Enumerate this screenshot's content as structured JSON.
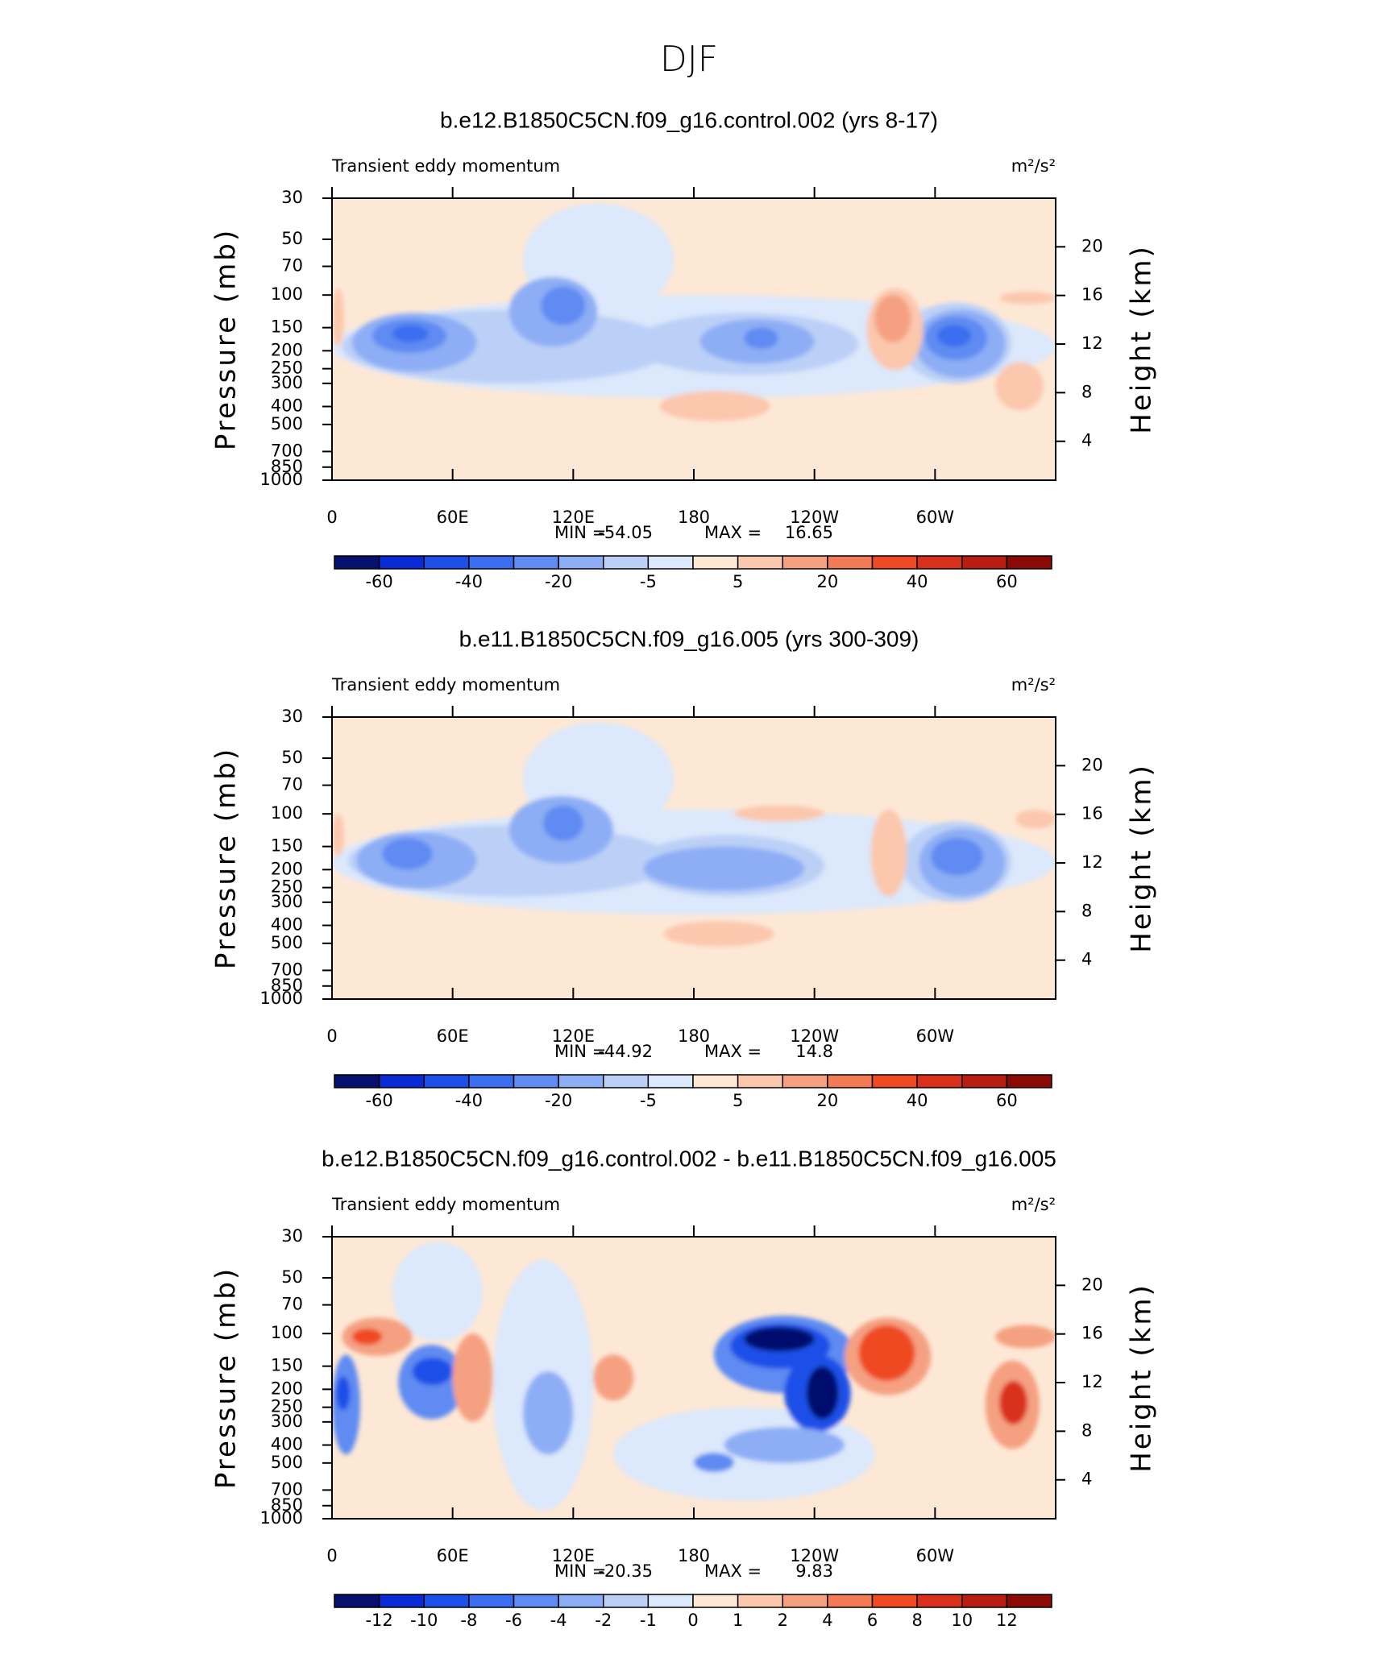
{
  "title": "DJF",
  "chart_data": [
    {
      "type": "contour",
      "title": "b.e12.B1850C5CN.f09_g16.control.002 (yrs 8-17)",
      "subtitle": "Transient eddy momentum",
      "units": "m²/s²",
      "ylabel": "Pressure (mb)",
      "y2label": "Height (km)",
      "xlim": [
        0,
        360
      ],
      "xticks": [
        0,
        {
          "value": 60,
          "label": "60E"
        },
        {
          "value": 120,
          "label": "120E"
        },
        180,
        {
          "value": 240,
          "label": "120W"
        },
        {
          "value": 300,
          "label": "60W"
        }
      ],
      "ylim": [
        30,
        1000
      ],
      "ylog": true,
      "y_reversed": true,
      "yticks": [
        30,
        50,
        70,
        100,
        150,
        200,
        250,
        300,
        400,
        500,
        700,
        850,
        1000
      ],
      "y2lim": [
        0.8,
        24
      ],
      "y2ticks": [
        4,
        8,
        12,
        16,
        20
      ],
      "min_label": "MIN =",
      "min": -54.05,
      "max_label": "MAX =",
      "max": 16.65,
      "levels": [
        -60,
        -50,
        -40,
        -30,
        -20,
        -10,
        -5,
        0,
        5,
        10,
        20,
        30,
        40,
        50,
        60
      ],
      "colorbar_ticks": [
        -60,
        -40,
        -20,
        -5,
        5,
        20,
        40,
        60
      ],
      "colors": [
        "#06106e",
        "#0a2ad6",
        "#1d4fe8",
        "#3b6ef0",
        "#5f8bf2",
        "#8dadf5",
        "#bcd0f7",
        "#dce8fb",
        "#fde8d6",
        "#fbc7ad",
        "#f5a081",
        "#f27a55",
        "#ef4a22",
        "#d8301a",
        "#b81d12",
        "#8a0a06"
      ],
      "background": 0,
      "regions": [
        {
          "lon": [
            95,
            170
          ],
          "p": [
            32,
            130
          ],
          "value": -1
        },
        {
          "lon": [
            0,
            360
          ],
          "p": [
            100,
            360
          ],
          "value": -1
        },
        {
          "lon": [
            5,
            170
          ],
          "p": [
            120,
            300
          ],
          "value": -5
        },
        {
          "lon": [
            150,
            262
          ],
          "p": [
            125,
            270
          ],
          "value": -5
        },
        {
          "lon": [
            283,
            338
          ],
          "p": [
            110,
            300
          ],
          "value": -5
        },
        {
          "lon": [
            10,
            72
          ],
          "p": [
            125,
            260
          ],
          "value": -10
        },
        {
          "lon": [
            88,
            132
          ],
          "p": [
            80,
            190
          ],
          "value": -10
        },
        {
          "lon": [
            183,
            240
          ],
          "p": [
            135,
            235
          ],
          "value": -10
        },
        {
          "lon": [
            290,
            335
          ],
          "p": [
            120,
            280
          ],
          "value": -10
        },
        {
          "lon": [
            20,
            57
          ],
          "p": [
            135,
            205
          ],
          "value": -20
        },
        {
          "lon": [
            104,
            126
          ],
          "p": [
            90,
            145
          ],
          "value": -20
        },
        {
          "lon": [
            205,
            222
          ],
          "p": [
            150,
            195
          ],
          "value": -20
        },
        {
          "lon": [
            295,
            326
          ],
          "p": [
            130,
            225
          ],
          "value": -20
        },
        {
          "lon": [
            30,
            48
          ],
          "p": [
            145,
            180
          ],
          "value": -30
        },
        {
          "lon": [
            301,
            318
          ],
          "p": [
            145,
            190
          ],
          "value": -30
        },
        {
          "lon": [
            266,
            294
          ],
          "p": [
            92,
            255
          ],
          "value": 5
        },
        {
          "lon": [
            270,
            288
          ],
          "p": [
            100,
            180
          ],
          "value": 10
        },
        {
          "lon": [
            0,
            6
          ],
          "p": [
            92,
            190
          ],
          "value": 5
        },
        {
          "lon": [
            163,
            218
          ],
          "p": [
            330,
            480
          ],
          "value": 5
        },
        {
          "lon": [
            330,
            354
          ],
          "p": [
            230,
            420
          ],
          "value": 5
        },
        {
          "lon": [
            332,
            360
          ],
          "p": [
            96,
            112
          ],
          "value": 5
        }
      ]
    },
    {
      "type": "contour",
      "title": "b.e11.B1850C5CN.f09_g16.005 (yrs 300-309)",
      "subtitle": "Transient eddy momentum",
      "units": "m²/s²",
      "ylabel": "Pressure (mb)",
      "y2label": "Height (km)",
      "xlim": [
        0,
        360
      ],
      "xticks": [
        0,
        {
          "value": 60,
          "label": "60E"
        },
        {
          "value": 120,
          "label": "120E"
        },
        180,
        {
          "value": 240,
          "label": "120W"
        },
        {
          "value": 300,
          "label": "60W"
        }
      ],
      "ylim": [
        30,
        1000
      ],
      "ylog": true,
      "y_reversed": true,
      "yticks": [
        30,
        50,
        70,
        100,
        150,
        200,
        250,
        300,
        400,
        500,
        700,
        850,
        1000
      ],
      "y2lim": [
        0.8,
        24
      ],
      "y2ticks": [
        4,
        8,
        12,
        16,
        20
      ],
      "min_label": "MIN =",
      "min": -44.92,
      "max_label": "MAX =",
      "max": 14.8,
      "levels": [
        -60,
        -50,
        -40,
        -30,
        -20,
        -10,
        -5,
        0,
        5,
        10,
        20,
        30,
        40,
        50,
        60
      ],
      "colorbar_ticks": [
        -60,
        -40,
        -20,
        -5,
        5,
        20,
        40,
        60
      ],
      "colors": [
        "#06106e",
        "#0a2ad6",
        "#1d4fe8",
        "#3b6ef0",
        "#5f8bf2",
        "#8dadf5",
        "#bcd0f7",
        "#dce8fb",
        "#fde8d6",
        "#fbc7ad",
        "#f5a081",
        "#f27a55",
        "#ef4a22",
        "#d8301a",
        "#b81d12",
        "#8a0a06"
      ],
      "background": 0,
      "regions": [
        {
          "lon": [
            95,
            170
          ],
          "p": [
            32,
            130
          ],
          "value": -1
        },
        {
          "lon": [
            0,
            360
          ],
          "p": [
            95,
            350
          ],
          "value": -1
        },
        {
          "lon": [
            8,
            170
          ],
          "p": [
            115,
            280
          ],
          "value": -5
        },
        {
          "lon": [
            150,
            245
          ],
          "p": [
            130,
            280
          ],
          "value": -5
        },
        {
          "lon": [
            283,
            338
          ],
          "p": [
            110,
            300
          ],
          "value": -5
        },
        {
          "lon": [
            12,
            72
          ],
          "p": [
            125,
            255
          ],
          "value": -10
        },
        {
          "lon": [
            88,
            140
          ],
          "p": [
            80,
            185
          ],
          "value": -10
        },
        {
          "lon": [
            155,
            235
          ],
          "p": [
            150,
            260
          ],
          "value": -10
        },
        {
          "lon": [
            292,
            335
          ],
          "p": [
            120,
            280
          ],
          "value": -10
        },
        {
          "lon": [
            25,
            50
          ],
          "p": [
            135,
            200
          ],
          "value": -20
        },
        {
          "lon": [
            105,
            125
          ],
          "p": [
            90,
            140
          ],
          "value": -20
        },
        {
          "lon": [
            298,
            324
          ],
          "p": [
            135,
            215
          ],
          "value": -20
        },
        {
          "lon": [
            268,
            286
          ],
          "p": [
            95,
            280
          ],
          "value": 5
        },
        {
          "lon": [
            200,
            245
          ],
          "p": [
            90,
            110
          ],
          "value": 5
        },
        {
          "lon": [
            0,
            6
          ],
          "p": [
            100,
            170
          ],
          "value": 5
        },
        {
          "lon": [
            165,
            220
          ],
          "p": [
            380,
            520
          ],
          "value": 5
        },
        {
          "lon": [
            340,
            360
          ],
          "p": [
            95,
            120
          ],
          "value": 5
        }
      ]
    },
    {
      "type": "contour",
      "title": "b.e12.B1850C5CN.f09_g16.control.002 - b.e11.B1850C5CN.f09_g16.005",
      "subtitle": "Transient eddy momentum",
      "units": "m²/s²",
      "ylabel": "Pressure (mb)",
      "y2label": "Height (km)",
      "xlim": [
        0,
        360
      ],
      "xticks": [
        0,
        {
          "value": 60,
          "label": "60E"
        },
        {
          "value": 120,
          "label": "120E"
        },
        180,
        {
          "value": 240,
          "label": "120W"
        },
        {
          "value": 300,
          "label": "60W"
        }
      ],
      "ylim": [
        30,
        1000
      ],
      "ylog": true,
      "y_reversed": true,
      "yticks": [
        30,
        50,
        70,
        100,
        150,
        200,
        250,
        300,
        400,
        500,
        700,
        850,
        1000
      ],
      "y2lim": [
        0.8,
        24
      ],
      "y2ticks": [
        4,
        8,
        12,
        16,
        20
      ],
      "min_label": "MIN =",
      "min": -20.35,
      "max_label": "MAX =",
      "max": 9.83,
      "levels": [
        -12,
        -10,
        -8,
        -6,
        -4,
        -2,
        -1,
        0,
        1,
        2,
        4,
        6,
        8,
        10,
        12
      ],
      "colorbar_ticks": [
        -12,
        -10,
        -8,
        -6,
        -4,
        -2,
        -1,
        0,
        1,
        2,
        4,
        6,
        8,
        10,
        12
      ],
      "colors": [
        "#06106e",
        "#0a2ad6",
        "#1d4fe8",
        "#3b6ef0",
        "#5f8bf2",
        "#8dadf5",
        "#bcd0f7",
        "#dce8fb",
        "#fde8d6",
        "#fbc7ad",
        "#f5a081",
        "#f27a55",
        "#ef4a22",
        "#d8301a",
        "#b81d12",
        "#8a0a06"
      ],
      "background": 0,
      "regions": [
        {
          "lon": [
            30,
            75
          ],
          "p": [
            32,
            110
          ],
          "value": -0.5
        },
        {
          "lon": [
            80,
            130
          ],
          "p": [
            40,
            900
          ],
          "value": -0.5
        },
        {
          "lon": [
            140,
            270
          ],
          "p": [
            250,
            800
          ],
          "value": -0.5
        },
        {
          "lon": [
            0,
            14
          ],
          "p": [
            130,
            450
          ],
          "value": -4
        },
        {
          "lon": [
            2,
            9
          ],
          "p": [
            170,
            260
          ],
          "value": -8
        },
        {
          "lon": [
            33,
            66
          ],
          "p": [
            115,
            290
          ],
          "value": -4
        },
        {
          "lon": [
            40,
            60
          ],
          "p": [
            135,
            190
          ],
          "value": -8
        },
        {
          "lon": [
            5,
            40
          ],
          "p": [
            82,
            132
          ],
          "value": 2
        },
        {
          "lon": [
            10,
            25
          ],
          "p": [
            94,
            115
          ],
          "value": 6
        },
        {
          "lon": [
            190,
            260
          ],
          "p": [
            80,
            210
          ],
          "value": -4
        },
        {
          "lon": [
            198,
            248
          ],
          "p": [
            88,
            155
          ],
          "value": -8
        },
        {
          "lon": [
            205,
            240
          ],
          "p": [
            92,
            125
          ],
          "value": -12
        },
        {
          "lon": [
            225,
            258
          ],
          "p": [
            130,
            340
          ],
          "value": -8
        },
        {
          "lon": [
            236,
            252
          ],
          "p": [
            150,
            290
          ],
          "value": -12
        },
        {
          "lon": [
            255,
            298
          ],
          "p": [
            82,
            215
          ],
          "value": 2
        },
        {
          "lon": [
            262,
            290
          ],
          "p": [
            90,
            180
          ],
          "value": 6
        },
        {
          "lon": [
            325,
            352
          ],
          "p": [
            140,
            420
          ],
          "value": 2
        },
        {
          "lon": [
            332,
            346
          ],
          "p": [
            180,
            310
          ],
          "value": 8
        },
        {
          "lon": [
            130,
            150
          ],
          "p": [
            130,
            230
          ],
          "value": 2
        },
        {
          "lon": [
            195,
            255
          ],
          "p": [
            320,
            500
          ],
          "value": -2
        },
        {
          "lon": [
            180,
            200
          ],
          "p": [
            440,
            560
          ],
          "value": -4
        },
        {
          "lon": [
            95,
            120
          ],
          "p": [
            160,
            450
          ],
          "value": -2
        },
        {
          "lon": [
            60,
            80
          ],
          "p": [
            100,
            300
          ],
          "value": 2
        },
        {
          "lon": [
            330,
            360
          ],
          "p": [
            90,
            120
          ],
          "value": 2
        }
      ]
    }
  ]
}
